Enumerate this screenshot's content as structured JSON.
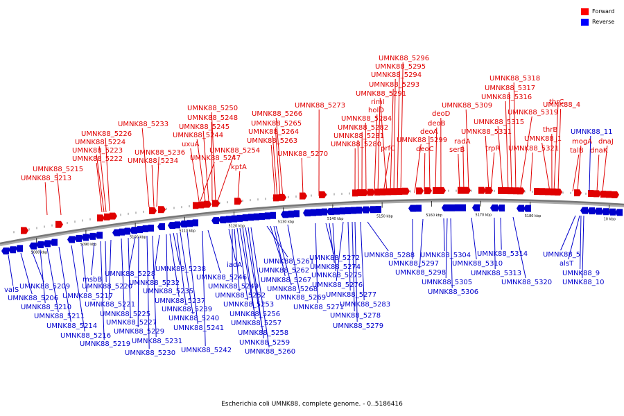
{
  "legend": {
    "forward_label": "Forward",
    "reverse_label": "Reverse",
    "forward_color": "#ff0000",
    "reverse_color": "#0000ff"
  },
  "caption": "Escherichia coli UMNK88, complete genome. - 0..5186416",
  "colors": {
    "forward": "#e00000",
    "reverse": "#0000cc",
    "backbone": "#777777"
  },
  "ticks": [
    {
      "label": "5080 kbp",
      "kb": 5080
    },
    {
      "label": "5090 kbp",
      "kb": 5090
    },
    {
      "label": "5100 kbp",
      "kb": 5100
    },
    {
      "label": "5110 kbp",
      "kb": 5110
    },
    {
      "label": "5120 kbp",
      "kb": 5120
    },
    {
      "label": "5130 kbp",
      "kb": 5130
    },
    {
      "label": "5140 kbp",
      "kb": 5140
    },
    {
      "label": "5150 kbp",
      "kb": 5150
    },
    {
      "label": "5160 kbp",
      "kb": 5160
    },
    {
      "label": "5170 kbp",
      "kb": 5170
    },
    {
      "label": "5180 kbp",
      "kb": 5180
    },
    {
      "label": "10 kbp",
      "kb": 5196
    }
  ],
  "forward_genes": [
    "UMNK88_5213",
    "UMNK88_5215",
    "UMNK88_5222",
    "UMNK88_5223",
    "UMNK88_5224",
    "UMNK88_5226",
    "UMNK88_5233",
    "UMNK88_5234",
    "UMNK88_5236",
    "UMNK88_5247",
    "UMNK88_5244",
    "UMNK88_5245",
    "UMNK88_5248",
    "UMNK88_5250",
    "uxuA",
    "UMNK88_5254",
    "kptA",
    "UMNK88_5263",
    "UMNK88_5264",
    "UMNK88_5265",
    "UMNK88_5266",
    "UMNK88_5270",
    "UMNK88_5273",
    "UMNK88_5280",
    "UMNK88_5281",
    "UMNK88_5282",
    "UMNK88_5284",
    "holD",
    "rimI",
    "prfC",
    "UMNK88_5291",
    "UMNK88_5293",
    "UMNK88_5294",
    "UMNK88_5295",
    "UMNK88_5296",
    "UMNK88_5299",
    "deoC",
    "deoA",
    "deoB",
    "deoD",
    "serB",
    "radA",
    "UMNK88_5309",
    "trpR",
    "UMNK88_5311",
    "UMNK88_5315",
    "UMNK88_5316",
    "UMNK88_5317",
    "UMNK88_5318",
    "UMNK88_5319",
    "UMNK88_5321",
    "UMNK88_1",
    "thrB",
    "thrC",
    "UMNK88_4",
    "talB",
    "mogA",
    "dnaK",
    "dnaJ"
  ],
  "reverse_genes": [
    "valS",
    "UMNK88_5206",
    "UMNK88_5209",
    "UMNK88_5210",
    "UMNK88_5211",
    "UMNK88_5214",
    "UMNK88_5216",
    "UMNK88_5217",
    "msbB",
    "UMNK88_5219",
    "UMNK88_5220",
    "UMNK88_5221",
    "UMNK88_5225",
    "UMNK88_5227",
    "UMNK88_5228",
    "UMNK88_5229",
    "UMNK88_5230",
    "UMNK88_5231",
    "UMNK88_5232",
    "UMNK88_5235",
    "UMNK88_5237",
    "UMNK88_5238",
    "UMNK88_5239",
    "UMNK88_5240",
    "UMNK88_5241",
    "UMNK88_5242",
    "UMNK88_5246",
    "iadA",
    "UMNK88_5249",
    "UMNK88_5252",
    "UMNK88_5253",
    "UMNK88_5256",
    "UMNK88_5257",
    "UMNK88_5258",
    "UMNK88_5259",
    "UMNK88_5260",
    "UMNK88_5261",
    "UMNK88_5262",
    "UMNK88_5267",
    "UMNK88_5268",
    "UMNK88_5269",
    "UMNK88_5271",
    "UMNK88_5272",
    "UMNK88_5274",
    "UMNK88_5275",
    "UMNK88_5276",
    "UMNK88_5277",
    "UMNK88_5278",
    "UMNK88_5279",
    "UMNK88_5283",
    "UMNK88_5288",
    "UMNK88_5297",
    "UMNK88_5298",
    "UMNK88_5304",
    "UMNK88_5305",
    "UMNK88_5306",
    "UMNK88_5310",
    "UMNK88_5313",
    "UMNK88_5314",
    "UMNK88_5320",
    "UMNK88_5",
    "alsT",
    "UMNK88_9",
    "UMNK88_10",
    "UMNK88_11"
  ]
}
